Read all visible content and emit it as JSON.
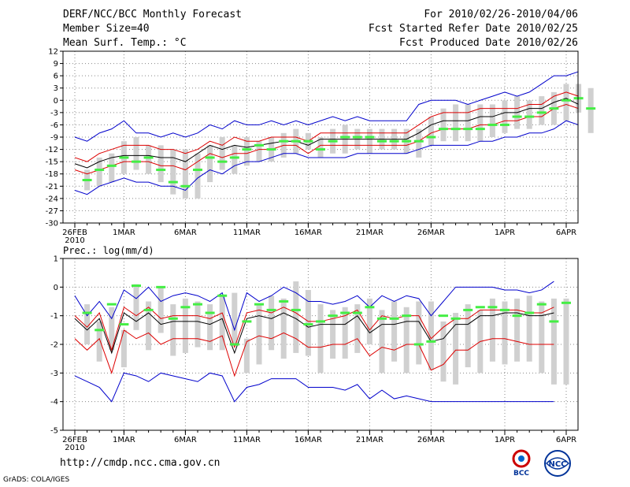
{
  "header": {
    "title": "DERF/NCC/BCC Monthly Forecast",
    "member_size": "Member Size=40",
    "variable": "Mean Surf. Temp.: °C",
    "for_range": "For 2010/02/26-2010/04/06",
    "started": "Fcst Started Refer Date 2010/02/25",
    "produced": "Fcst Produced Date 2010/02/26"
  },
  "footer": {
    "url": "http://cmdp.ncc.cma.gov.cn",
    "credit": "GrADS: COLA/IGES",
    "logo_bcc": "BCC",
    "logo_ncc": "NCC"
  },
  "colors": {
    "envelope": "#0000cc",
    "spread": "#dd0000",
    "mean": "#000000",
    "box": "#d0d0d0",
    "marker": "#44ee44",
    "grid": "#888888"
  },
  "chart_data": [
    {
      "type": "line",
      "title": "",
      "ylabel": "Mean Surf. Temp.: °C",
      "ylim": [
        -30,
        12
      ],
      "yticks": [
        "12",
        "9",
        "6",
        "3",
        "0",
        "-3",
        "-6",
        "-9",
        "-12",
        "-15",
        "-18",
        "-21",
        "-24",
        "-27",
        "-30"
      ],
      "ytick_values": [
        12,
        9,
        6,
        3,
        0,
        -3,
        -6,
        -9,
        -12,
        -15,
        -18,
        -21,
        -24,
        -27,
        -30
      ],
      "xlabels": [
        "26FEB",
        "1MAR",
        "6MAR",
        "11MAR",
        "16MAR",
        "21MAR",
        "26MAR",
        "1APR",
        "6APR"
      ],
      "xlabel_days": [
        0,
        4,
        9,
        14,
        19,
        24,
        29,
        35,
        40
      ],
      "year_label": "2010",
      "days": 40,
      "series": [
        {
          "name": "max",
          "values": [
            -9,
            -10,
            -8,
            -7,
            -5,
            -8,
            -8,
            -9,
            -8,
            -9,
            -8,
            -6,
            -7,
            -5,
            -6,
            -6,
            -5,
            -6,
            -5,
            -6,
            -5,
            -4,
            -5,
            -4,
            -5,
            -5,
            -5,
            -5,
            -1,
            0,
            0,
            0,
            -1,
            0,
            1,
            2,
            1,
            2,
            4,
            6,
            6,
            7
          ]
        },
        {
          "name": "p75",
          "values": [
            -14,
            -15,
            -13,
            -12,
            -11,
            -11,
            -11,
            -12,
            -12,
            -13,
            -12,
            -10,
            -11,
            -9,
            -10,
            -10,
            -9,
            -9,
            -9,
            -10,
            -8,
            -8,
            -8,
            -8,
            -8,
            -8,
            -8,
            -8,
            -6,
            -4,
            -3,
            -3,
            -3,
            -2,
            -2,
            -2,
            -2,
            -1,
            -1,
            1,
            2,
            1
          ]
        },
        {
          "name": "mean",
          "values": [
            -15.5,
            -16.5,
            -15,
            -14,
            -13.5,
            -13.5,
            -13.5,
            -14,
            -14,
            -15,
            -13,
            -11,
            -12,
            -11,
            -11.5,
            -11,
            -10.5,
            -10,
            -10,
            -11,
            -9.5,
            -9.5,
            -9.5,
            -9.5,
            -9.5,
            -9.5,
            -9.5,
            -9.5,
            -8,
            -6,
            -5,
            -5,
            -5,
            -4,
            -4,
            -3,
            -3,
            -2,
            -2,
            -0.5,
            0.5,
            -1
          ]
        },
        {
          "name": "p25",
          "values": [
            -17,
            -18,
            -17,
            -16,
            -15,
            -15,
            -15,
            -16,
            -16,
            -17,
            -15,
            -13,
            -14,
            -13,
            -13,
            -12,
            -12,
            -11,
            -11,
            -13,
            -11,
            -11,
            -11,
            -11,
            -11,
            -11,
            -11,
            -11,
            -10,
            -8,
            -7,
            -7,
            -7,
            -6,
            -6,
            -5,
            -5,
            -4,
            -4,
            -2,
            -1,
            -2
          ]
        },
        {
          "name": "min",
          "values": [
            -22,
            -23,
            -21,
            -20,
            -19,
            -20,
            -20,
            -21,
            -21,
            -22,
            -19,
            -17,
            -18,
            -16,
            -15,
            -15,
            -14,
            -13,
            -13,
            -14,
            -14,
            -14,
            -14,
            -13,
            -13,
            -13,
            -13,
            -13,
            -12,
            -11,
            -11,
            -11,
            -11,
            -10,
            -10,
            -9,
            -9,
            -8,
            -8,
            -7,
            -5,
            -6
          ]
        },
        {
          "name": "box_hi",
          "values": [
            -17,
            -14,
            -13,
            -10,
            -9,
            -11,
            -11,
            -12,
            -12,
            -13,
            -11,
            -9,
            -11,
            -9,
            -10,
            -9,
            -8,
            -7,
            -8,
            -9,
            -7,
            -6,
            -7,
            -7,
            -7,
            -7,
            -7,
            -7,
            -4,
            -2,
            -1,
            -1,
            -1,
            -1,
            0,
            1,
            0,
            1,
            2,
            4,
            4,
            3
          ]
        },
        {
          "name": "box_lo",
          "values": [
            -22,
            -21,
            -20,
            -18,
            -17,
            -18,
            -20,
            -23,
            -24,
            -24,
            -20,
            -17,
            -18,
            -16,
            -15,
            -15,
            -14,
            -13,
            -12,
            -14,
            -13,
            -13,
            -12,
            -13,
            -12,
            -12,
            -13,
            -14,
            -11,
            -10,
            -10,
            -10,
            -10,
            -9,
            -8,
            -7,
            -7,
            -6,
            -6,
            -5,
            -3,
            -8
          ]
        },
        {
          "name": "ensemble_markers",
          "values": [
            -19.5,
            -17,
            -16,
            -14,
            -15,
            -14,
            -17,
            -20,
            -21,
            -17,
            -14,
            -15,
            -14,
            -12,
            -11,
            -12,
            -10,
            -10,
            -10,
            -12,
            -10,
            -9,
            -9,
            -9,
            -10,
            -10,
            -10,
            -10,
            -9,
            -7,
            -7,
            -7,
            -7,
            -6,
            -6,
            -4,
            -4,
            -3,
            -2,
            0,
            0.5,
            -2
          ]
        }
      ]
    },
    {
      "type": "line",
      "title": "",
      "ylabel": "Prec.: log(mm/d)",
      "ylim": [
        -5,
        1
      ],
      "yticks": [
        "1",
        "0",
        "-1",
        "-2",
        "-3",
        "-4",
        "-5"
      ],
      "ytick_values": [
        1,
        0,
        -1,
        -2,
        -3,
        -4,
        -5
      ],
      "xlabels": [
        "26FEB",
        "1MAR",
        "6MAR",
        "11MAR",
        "16MAR",
        "21MAR",
        "26MAR",
        "1APR",
        "6APR"
      ],
      "xlabel_days": [
        0,
        4,
        9,
        14,
        19,
        24,
        29,
        35,
        40
      ],
      "year_label": "2010",
      "days": 40,
      "series": [
        {
          "name": "max",
          "values": [
            -0.3,
            -1.0,
            -0.5,
            -1.1,
            -0.1,
            -0.4,
            0.0,
            -0.5,
            -0.3,
            -0.2,
            -0.3,
            -0.5,
            -0.2,
            -1.5,
            -0.2,
            -0.5,
            -0.3,
            0.0,
            -0.2,
            -0.5,
            -0.5,
            -0.6,
            -0.5,
            -0.3,
            -0.7,
            -0.3,
            -0.5,
            -0.3,
            -0.4,
            -1.0,
            -0.5,
            0.0,
            0.0,
            0.0,
            0.0,
            -0.1,
            -0.1,
            -0.2,
            -0.1,
            0.2
          ]
        },
        {
          "name": "p75",
          "values": [
            -1.0,
            -1.4,
            -0.9,
            -2.2,
            -0.7,
            -1.0,
            -0.7,
            -1.1,
            -1.0,
            -1.0,
            -1.0,
            -1.1,
            -0.9,
            -2.1,
            -0.9,
            -0.8,
            -0.9,
            -0.7,
            -0.9,
            -1.2,
            -1.2,
            -1.1,
            -1.0,
            -0.8,
            -1.5,
            -1.0,
            -1.1,
            -1.0,
            -1.0,
            -1.8,
            -1.4,
            -1.1,
            -1.1,
            -0.8,
            -0.8,
            -0.8,
            -0.8,
            -0.9,
            -0.9,
            -0.7
          ]
        },
        {
          "name": "mean",
          "values": [
            -1.1,
            -1.5,
            -1.1,
            -2.3,
            -0.9,
            -1.2,
            -0.9,
            -1.3,
            -1.2,
            -1.2,
            -1.2,
            -1.3,
            -1.1,
            -2.3,
            -1.1,
            -1.0,
            -1.1,
            -0.9,
            -1.1,
            -1.4,
            -1.3,
            -1.3,
            -1.3,
            -1.0,
            -1.6,
            -1.3,
            -1.3,
            -1.2,
            -1.2,
            -1.9,
            -1.8,
            -1.3,
            -1.3,
            -1.0,
            -1.0,
            -0.9,
            -0.9,
            -1.0,
            -1.0,
            -0.9
          ]
        },
        {
          "name": "p25",
          "values": [
            -1.8,
            -2.2,
            -1.8,
            -3.0,
            -1.5,
            -1.8,
            -1.6,
            -2.0,
            -1.8,
            -1.8,
            -1.8,
            -1.9,
            -1.7,
            -3.1,
            -1.9,
            -1.7,
            -1.8,
            -1.6,
            -1.8,
            -2.1,
            -2.1,
            -2.0,
            -2.0,
            -1.8,
            -2.4,
            -2.1,
            -2.2,
            -2.0,
            -2.0,
            -2.9,
            -2.7,
            -2.2,
            -2.2,
            -1.9,
            -1.8,
            -1.8,
            -1.9,
            -2.0,
            -2.0,
            -2.0
          ]
        },
        {
          "name": "min",
          "values": [
            -3.1,
            -3.3,
            -3.5,
            -4.0,
            -3.0,
            -3.1,
            -3.3,
            -3.0,
            -3.1,
            -3.2,
            -3.3,
            -3.0,
            -3.1,
            -4.0,
            -3.5,
            -3.4,
            -3.2,
            -3.2,
            -3.2,
            -3.5,
            -3.5,
            -3.5,
            -3.6,
            -3.4,
            -3.9,
            -3.6,
            -3.9,
            -3.8,
            -3.9,
            -4.0,
            -4.0,
            -4.0,
            -4.0,
            -4.0,
            -4.0,
            -4.0,
            -4.0,
            -4.0,
            -4.0,
            -4.0
          ]
        },
        {
          "name": "box_hi",
          "values": [
            -0.6,
            -1.2,
            -0.7,
            -1.5,
            0.1,
            -0.5,
            0.0,
            -0.6,
            -0.4,
            -0.5,
            -0.6,
            -0.3,
            -0.2,
            -1.8,
            -0.6,
            -0.3,
            -0.4,
            0.2,
            -0.1,
            -0.6,
            -0.8,
            -0.7,
            -0.6,
            -0.4,
            -0.8,
            -0.5,
            -0.7,
            -0.5,
            -0.5,
            -1.2,
            -0.9,
            -0.6,
            -0.8,
            -0.4,
            -0.5,
            -0.4,
            -0.3,
            -0.5,
            -0.4,
            -0.4
          ]
        },
        {
          "name": "box_lo",
          "values": [
            -2.0,
            -2.6,
            -2.2,
            -2.8,
            -1.5,
            -2.2,
            -1.6,
            -2.4,
            -2.3,
            -2.1,
            -2.2,
            -2.2,
            -2.0,
            -3.0,
            -2.7,
            -2.2,
            -2.5,
            -2.3,
            -2.4,
            -3.0,
            -2.5,
            -2.5,
            -2.3,
            -2.0,
            -3.0,
            -2.6,
            -3.0,
            -2.7,
            -2.9,
            -3.3,
            -3.4,
            -2.8,
            -3.0,
            -2.6,
            -2.7,
            -2.6,
            -2.6,
            -3.0,
            -3.4,
            -3.4
          ]
        },
        {
          "name": "ensemble_markers",
          "values": [
            -0.9,
            -1.5,
            -0.6,
            -1.3,
            0.05,
            -0.8,
            0.0,
            -1.1,
            -0.7,
            -0.6,
            -0.9,
            -0.3,
            -2.0,
            -1.2,
            -0.6,
            -0.8,
            -0.5,
            -0.8,
            -1.3,
            -1.2,
            -1.0,
            -0.9,
            -0.9,
            -0.7,
            -1.1,
            -1.1,
            -1.0,
            -2.0,
            -1.9,
            -1.0,
            -1.1,
            -0.8,
            -0.7,
            -0.7,
            -0.8,
            -1.0,
            -0.9,
            -0.6,
            -1.2,
            -0.55
          ]
        }
      ]
    }
  ]
}
